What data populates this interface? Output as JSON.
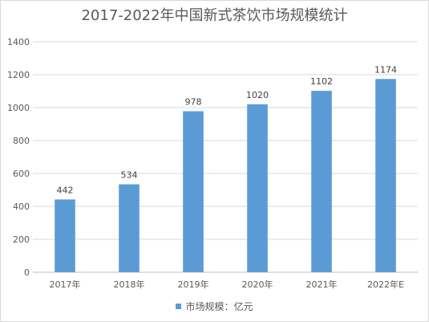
{
  "chart_data": {
    "type": "bar",
    "title": "2017-2022年中国新式茶饮市场规模统计",
    "categories": [
      "2017年",
      "2018年",
      "2019年",
      "2020年",
      "2021年",
      "2022年E"
    ],
    "series": [
      {
        "name": "市场规模：亿元",
        "values": [
          442,
          534,
          978,
          1020,
          1102,
          1174
        ],
        "color": "#5b9bd5"
      }
    ],
    "data_labels": [
      "442",
      "534",
      "978",
      "1020",
      "1102",
      "1174"
    ],
    "yticks": [
      "0",
      "200",
      "400",
      "600",
      "800",
      "1000",
      "1200",
      "1400"
    ],
    "ylim": [
      0,
      1400
    ],
    "grid": true,
    "legend_position": "bottom"
  }
}
